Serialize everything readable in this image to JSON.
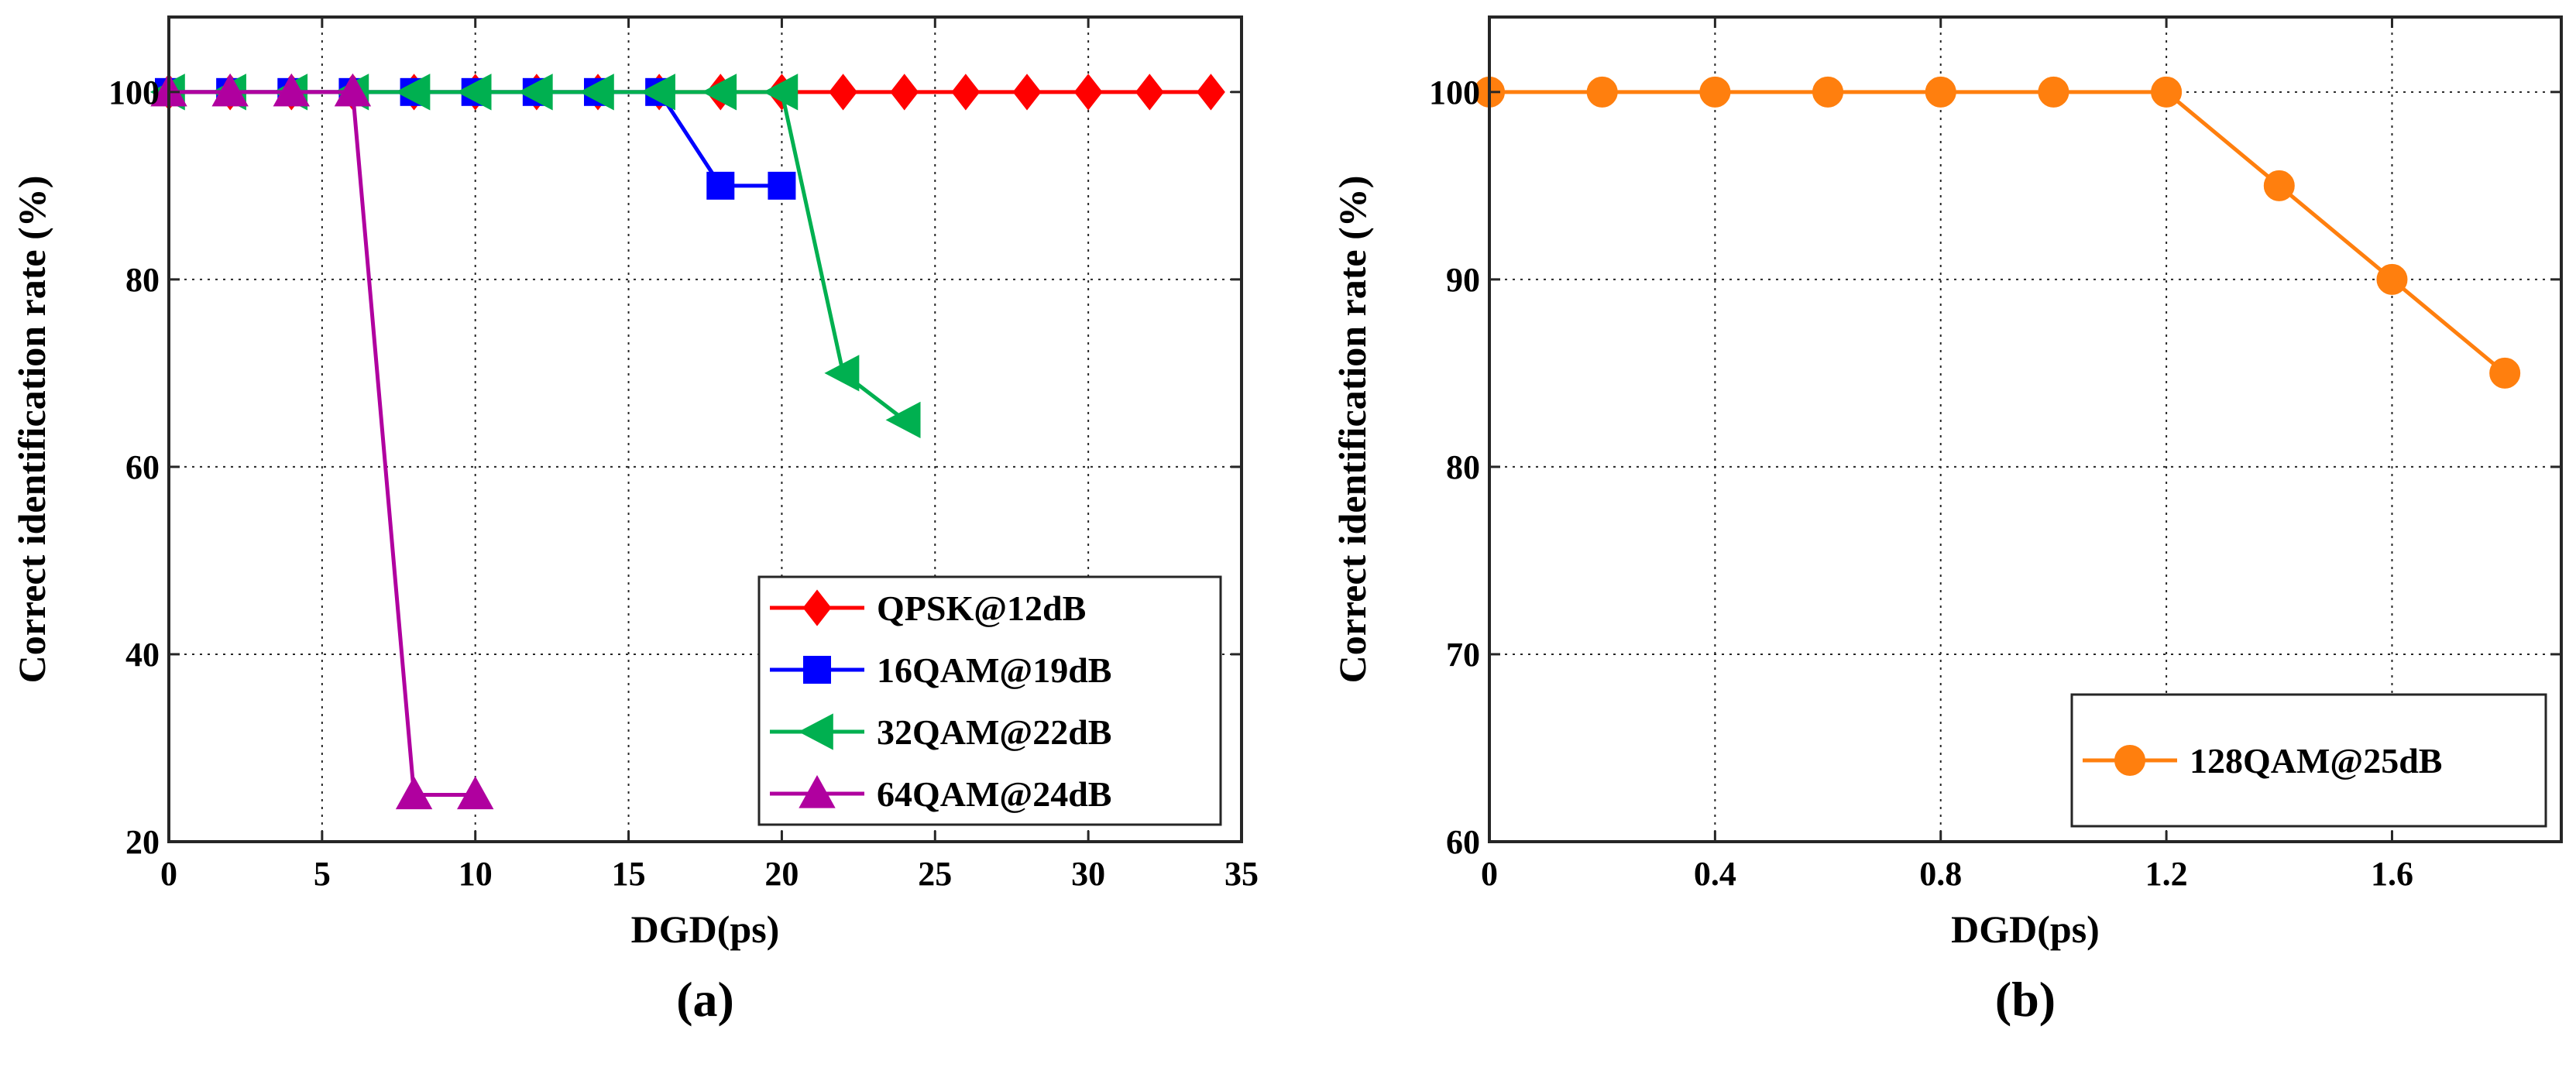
{
  "chart_data": [
    {
      "type": "line",
      "panel_label": "(a)",
      "xlabel": "DGD(ps)",
      "ylabel": "Correct identification rate (%)",
      "xlim": [
        0,
        35
      ],
      "ylim": [
        20,
        108
      ],
      "xticks": [
        0,
        5,
        10,
        15,
        20,
        25,
        30,
        35
      ],
      "yticks": [
        20,
        40,
        60,
        80,
        100
      ],
      "legend_position": "bottom-right",
      "series": [
        {
          "name": "QPSK@12dB",
          "color": "#ff0000",
          "marker": "diamond",
          "x": [
            0,
            2,
            4,
            6,
            8,
            10,
            12,
            14,
            16,
            18,
            20,
            22,
            24,
            26,
            28,
            30,
            32,
            34
          ],
          "y": [
            100,
            100,
            100,
            100,
            100,
            100,
            100,
            100,
            100,
            100,
            100,
            100,
            100,
            100,
            100,
            100,
            100,
            100
          ]
        },
        {
          "name": "16QAM@19dB",
          "color": "#0000ff",
          "marker": "square",
          "x": [
            0,
            2,
            4,
            6,
            8,
            10,
            12,
            14,
            16,
            18,
            20
          ],
          "y": [
            100,
            100,
            100,
            100,
            100,
            100,
            100,
            100,
            100,
            90,
            90
          ]
        },
        {
          "name": "32QAM@22dB",
          "color": "#00b050",
          "marker": "triangle-left",
          "x": [
            0,
            2,
            4,
            6,
            8,
            10,
            12,
            14,
            16,
            18,
            20,
            22,
            24
          ],
          "y": [
            100,
            100,
            100,
            100,
            100,
            100,
            100,
            100,
            100,
            100,
            100,
            70,
            65
          ]
        },
        {
          "name": "64QAM@24dB",
          "color": "#b0009f",
          "marker": "triangle-up",
          "x": [
            0,
            2,
            4,
            6,
            8,
            10
          ],
          "y": [
            100,
            100,
            100,
            100,
            25,
            25
          ]
        }
      ]
    },
    {
      "type": "line",
      "panel_label": "(b)",
      "xlabel": "DGD(ps)",
      "ylabel": "Correct identification rate (%)",
      "xlim": [
        0,
        1.9
      ],
      "ylim": [
        60,
        104
      ],
      "xticks": [
        0,
        0.4,
        0.8,
        1.2,
        1.6
      ],
      "yticks": [
        60,
        70,
        80,
        90,
        100
      ],
      "legend_position": "bottom-right",
      "series": [
        {
          "name": "128QAM@25dB",
          "color": "#ff7f0e",
          "marker": "circle",
          "x": [
            0,
            0.2,
            0.4,
            0.6,
            0.8,
            1.0,
            1.2,
            1.4,
            1.6,
            1.8
          ],
          "y": [
            100,
            100,
            100,
            100,
            100,
            100,
            100,
            95,
            90,
            85
          ]
        }
      ]
    }
  ]
}
